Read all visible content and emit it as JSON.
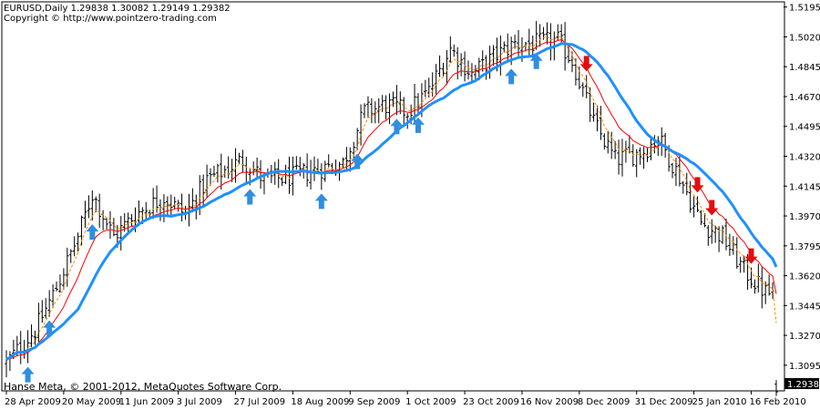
{
  "header": {
    "symbol_line": "EURUSD,Daily  1.29838 1.30082 1.29149 1.29382",
    "copyright_line": "Copyright © http://www.pointzero-trading.com"
  },
  "footer": {
    "text": "Hanse Meta, © 2001-2012, MetaQuotes Software Corp."
  },
  "chart_data": {
    "type": "ohlc",
    "symbol": "EURUSD",
    "timeframe": "Daily",
    "last": {
      "open": 1.29838,
      "high": 1.30082,
      "low": 1.29149,
      "close": 1.29382
    },
    "current_price_label": "1.29382",
    "ylim": [
      1.295,
      1.522
    ],
    "y_ticks": [
      "1.51950",
      "1.50200",
      "1.48450",
      "1.46700",
      "1.44950",
      "1.43200",
      "1.41450",
      "1.39700",
      "1.37950",
      "1.36200",
      "1.34450",
      "1.32700",
      "1.30950"
    ],
    "x_ticks": [
      "28 Apr 2009",
      "20 May 2009",
      "11 Jun 2009",
      "3 Jul 2009",
      "27 Jul 2009",
      "18 Aug 2009",
      "9 Sep 2009",
      "1 Oct 2009",
      "23 Oct 2009",
      "16 Nov 2009",
      "8 Dec 2009",
      "31 Dec 2009",
      "25 Jan 2010",
      "16 Feb 2010"
    ],
    "x_tick_bar_index": [
      0,
      16,
      32,
      48,
      64,
      80,
      96,
      112,
      128,
      144,
      160,
      176,
      192,
      208
    ],
    "close_anchors": [
      [
        0,
        1.311
      ],
      [
        8,
        1.33
      ],
      [
        14,
        1.355
      ],
      [
        20,
        1.385
      ],
      [
        24,
        1.41
      ],
      [
        30,
        1.385
      ],
      [
        36,
        1.398
      ],
      [
        44,
        1.408
      ],
      [
        50,
        1.398
      ],
      [
        56,
        1.418
      ],
      [
        62,
        1.425
      ],
      [
        66,
        1.43
      ],
      [
        72,
        1.418
      ],
      [
        80,
        1.42
      ],
      [
        88,
        1.425
      ],
      [
        94,
        1.428
      ],
      [
        100,
        1.458
      ],
      [
        106,
        1.462
      ],
      [
        112,
        1.458
      ],
      [
        118,
        1.47
      ],
      [
        124,
        1.495
      ],
      [
        130,
        1.48
      ],
      [
        136,
        1.49
      ],
      [
        142,
        1.498
      ],
      [
        148,
        1.498
      ],
      [
        154,
        1.5
      ],
      [
        158,
        1.488
      ],
      [
        164,
        1.452
      ],
      [
        170,
        1.43
      ],
      [
        178,
        1.435
      ],
      [
        182,
        1.443
      ],
      [
        188,
        1.42
      ],
      [
        194,
        1.393
      ],
      [
        200,
        1.385
      ],
      [
        206,
        1.365
      ],
      [
        212,
        1.352
      ],
      [
        215,
        1.352
      ]
    ],
    "series": [
      {
        "name": "EURUSD",
        "color": "#000000"
      },
      {
        "color": "#ff0000"
      },
      {
        "color": "#1e90ff"
      },
      {
        "color": "#ff8c00"
      }
    ],
    "buy_signals": [
      6,
      12,
      24,
      68,
      88,
      98,
      109,
      115,
      141,
      148
    ],
    "sell_signals": [
      162,
      193,
      197,
      208
    ],
    "buy_color": "#2f8ee0",
    "sell_color": "#e01010",
    "grid": false,
    "background": "#ffffff"
  }
}
